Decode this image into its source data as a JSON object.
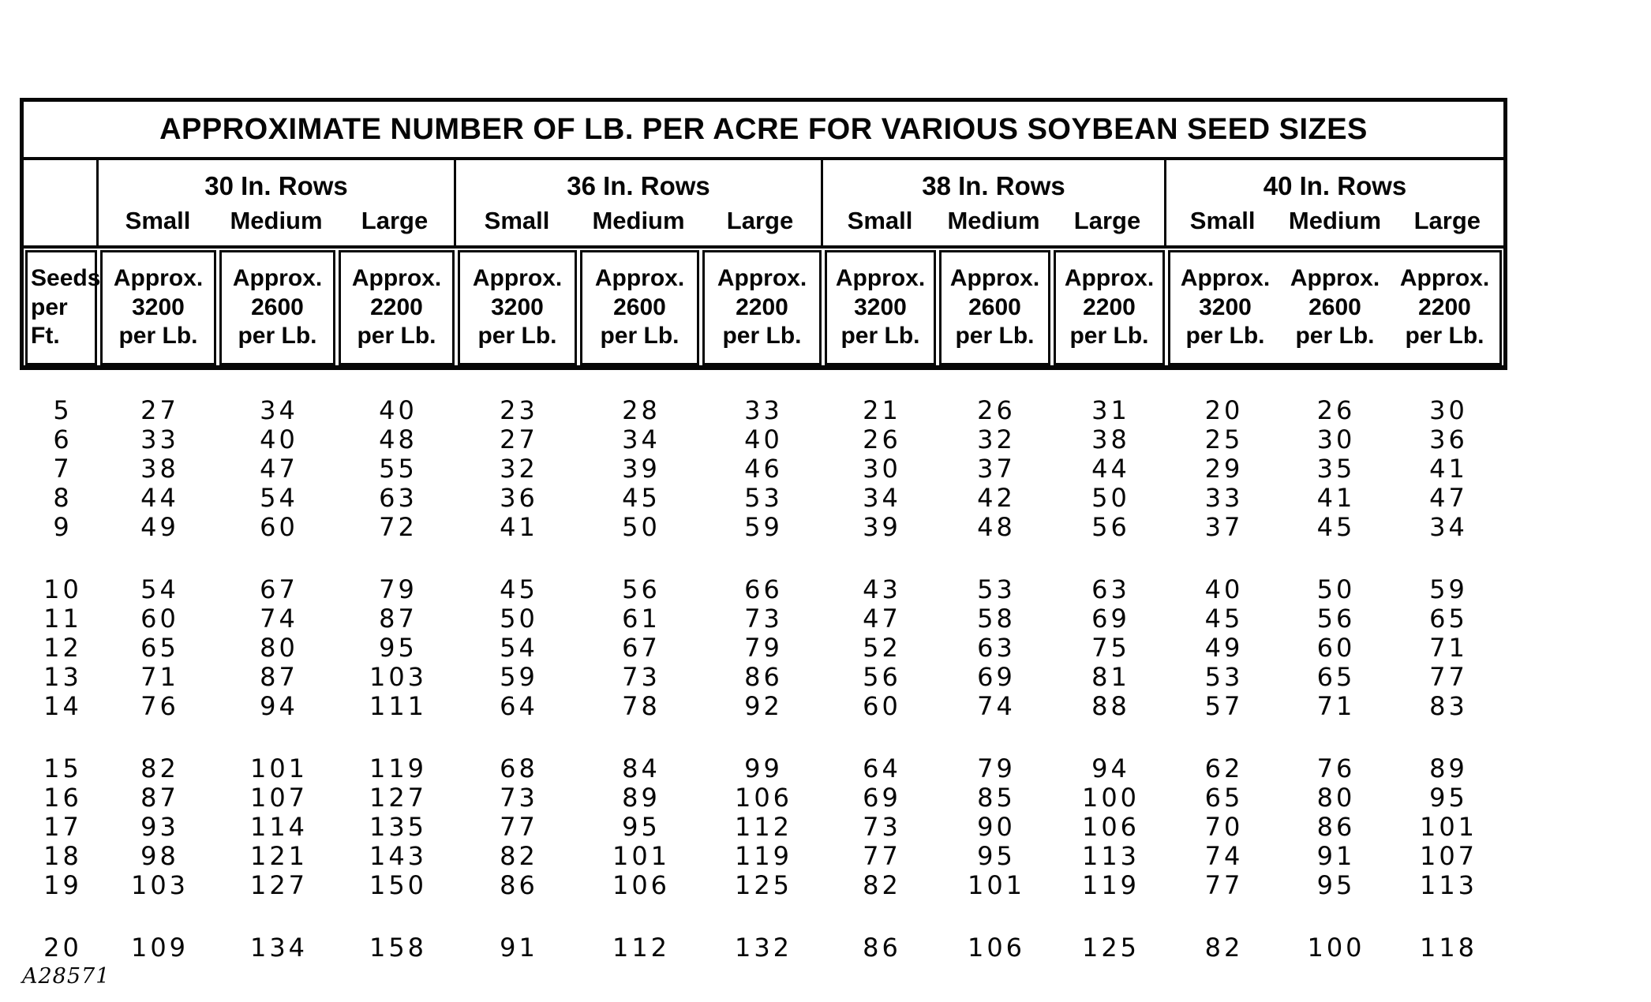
{
  "document": {
    "title": "APPROXIMATE NUMBER OF LB. PER ACRE FOR VARIOUS SOYBEAN SEED SIZES",
    "figure_code": "A28571"
  },
  "table": {
    "row_axis_label_lines": [
      "Seeds",
      "per",
      "Ft."
    ],
    "groups": [
      {
        "label": "30 In. Rows",
        "sizes": [
          "Small",
          "Medium",
          "Large"
        ],
        "merged_subheader": false,
        "subcolumns": [
          [
            "Approx.",
            "3200",
            "per Lb."
          ],
          [
            "Approx.",
            "2600",
            "per Lb."
          ],
          [
            "Approx.",
            "2200",
            "per Lb."
          ]
        ]
      },
      {
        "label": "36 In. Rows",
        "sizes": [
          "Small",
          "Medium",
          "Large"
        ],
        "merged_subheader": false,
        "subcolumns": [
          [
            "Approx.",
            "3200",
            "per Lb."
          ],
          [
            "Approx.",
            "2600",
            "per Lb."
          ],
          [
            "Approx.",
            "2200",
            "per Lb."
          ]
        ]
      },
      {
        "label": "38 In. Rows",
        "sizes": [
          "Small",
          "Medium",
          "Large"
        ],
        "merged_subheader": false,
        "subcolumns": [
          [
            "Approx.",
            "3200",
            "per Lb."
          ],
          [
            "Approx.",
            "2600",
            "per Lb."
          ],
          [
            "Approx.",
            "2200",
            "per Lb."
          ]
        ]
      },
      {
        "label": "40 In. Rows",
        "sizes": [
          "Small",
          "Medium",
          "Large"
        ],
        "merged_subheader": true,
        "subcolumns": [
          [
            "Approx.",
            "3200",
            "per Lb."
          ],
          [
            "Approx.",
            "2600",
            "per Lb."
          ],
          [
            "Approx.",
            "2200",
            "per Lb."
          ]
        ]
      }
    ],
    "row_groups": [
      {
        "rows": [
          {
            "seeds": "5",
            "values": [
              "27",
              "34",
              "40",
              "23",
              "28",
              "33",
              "21",
              "26",
              "31",
              "20",
              "26",
              "30"
            ]
          },
          {
            "seeds": "6",
            "values": [
              "33",
              "40",
              "48",
              "27",
              "34",
              "40",
              "26",
              "32",
              "38",
              "25",
              "30",
              "36"
            ]
          },
          {
            "seeds": "7",
            "values": [
              "38",
              "47",
              "55",
              "32",
              "39",
              "46",
              "30",
              "37",
              "44",
              "29",
              "35",
              "41"
            ]
          },
          {
            "seeds": "8",
            "values": [
              "44",
              "54",
              "63",
              "36",
              "45",
              "53",
              "34",
              "42",
              "50",
              "33",
              "41",
              "47"
            ]
          },
          {
            "seeds": "9",
            "values": [
              "49",
              "60",
              "72",
              "41",
              "50",
              "59",
              "39",
              "48",
              "56",
              "37",
              "45",
              "34"
            ]
          }
        ]
      },
      {
        "rows": [
          {
            "seeds": "10",
            "values": [
              "54",
              "67",
              "79",
              "45",
              "56",
              "66",
              "43",
              "53",
              "63",
              "40",
              "50",
              "59"
            ]
          },
          {
            "seeds": "11",
            "values": [
              "60",
              "74",
              "87",
              "50",
              "61",
              "73",
              "47",
              "58",
              "69",
              "45",
              "56",
              "65"
            ]
          },
          {
            "seeds": "12",
            "values": [
              "65",
              "80",
              "95",
              "54",
              "67",
              "79",
              "52",
              "63",
              "75",
              "49",
              "60",
              "71"
            ]
          },
          {
            "seeds": "13",
            "values": [
              "71",
              "87",
              "103",
              "59",
              "73",
              "86",
              "56",
              "69",
              "81",
              "53",
              "65",
              "77"
            ]
          },
          {
            "seeds": "14",
            "values": [
              "76",
              "94",
              "111",
              "64",
              "78",
              "92",
              "60",
              "74",
              "88",
              "57",
              "71",
              "83"
            ]
          }
        ]
      },
      {
        "rows": [
          {
            "seeds": "15",
            "values": [
              "82",
              "101",
              "119",
              "68",
              "84",
              "99",
              "64",
              "79",
              "94",
              "62",
              "76",
              "89"
            ]
          },
          {
            "seeds": "16",
            "values": [
              "87",
              "107",
              "127",
              "73",
              "89",
              "106",
              "69",
              "85",
              "100",
              "65",
              "80",
              "95"
            ]
          },
          {
            "seeds": "17",
            "values": [
              "93",
              "114",
              "135",
              "77",
              "95",
              "112",
              "73",
              "90",
              "106",
              "70",
              "86",
              "101"
            ]
          },
          {
            "seeds": "18",
            "values": [
              "98",
              "121",
              "143",
              "82",
              "101",
              "119",
              "77",
              "95",
              "113",
              "74",
              "91",
              "107"
            ]
          },
          {
            "seeds": "19",
            "values": [
              "103",
              "127",
              "150",
              "86",
              "106",
              "125",
              "82",
              "101",
              "119",
              "77",
              "95",
              "113"
            ]
          }
        ]
      },
      {
        "rows": [
          {
            "seeds": "20",
            "values": [
              "109",
              "134",
              "158",
              "91",
              "112",
              "132",
              "86",
              "106",
              "125",
              "82",
              "100",
              "118"
            ]
          }
        ]
      }
    ]
  }
}
